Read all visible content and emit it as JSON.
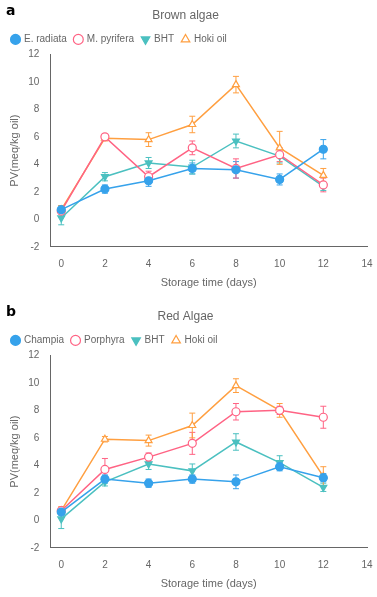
{
  "chart_data": [
    {
      "type": "line",
      "title": "Brown algae",
      "annotations": [
        "a"
      ],
      "xlabel": "Storage time (days)",
      "ylabel": "PV(meq/kg oil)",
      "x": [
        0,
        2,
        4,
        6,
        8,
        10,
        12
      ],
      "series": [
        {
          "name": "E. radiata",
          "marker": "circle",
          "values": [
            0.7,
            2.2,
            2.8,
            3.7,
            3.6,
            2.9,
            5.1
          ],
          "yerr": [
            0.3,
            0.3,
            0.4,
            0.4,
            0.6,
            0.4,
            0.7
          ]
        },
        {
          "name": "M. pyrifera",
          "marker": "circle-open",
          "values": [
            0.6,
            6.0,
            3.1,
            5.2,
            3.7,
            4.7,
            2.5
          ],
          "yerr": [
            0.1,
            0.2,
            0.4,
            0.5,
            0.7,
            0.5,
            0.5
          ]
        },
        {
          "name": "BHT",
          "marker": "triangle-down",
          "values": [
            0.1,
            3.1,
            4.1,
            3.8,
            5.7,
            4.6,
            2.4
          ],
          "yerr": [
            0.5,
            0.3,
            0.4,
            0.5,
            0.5,
            0.5,
            0.3
          ]
        },
        {
          "name": "Hoki oil",
          "marker": "triangle-open",
          "values": [
            0.7,
            5.9,
            5.8,
            6.9,
            9.8,
            5.2,
            3.2
          ],
          "yerr": [
            0.3,
            0.2,
            0.5,
            0.6,
            0.6,
            1.2,
            0.5
          ]
        }
      ],
      "xlim": [
        -0.5,
        14
      ],
      "ylim": [
        -2,
        12
      ],
      "xticks": [
        0,
        2,
        4,
        6,
        8,
        10,
        12,
        14
      ],
      "yticks": [
        -2,
        0,
        2,
        4,
        6,
        8,
        10,
        12
      ],
      "grid": false,
      "legend": "upper left"
    },
    {
      "type": "line",
      "title": "Red Algae",
      "annotations": [
        "b"
      ],
      "xlabel": "Storage time (days)",
      "ylabel": "PV(meq/kg oil)",
      "x": [
        0,
        2,
        4,
        6,
        8,
        10,
        12
      ],
      "series": [
        {
          "name": "Champia",
          "marker": "circle",
          "values": [
            0.6,
            3.0,
            2.7,
            3.0,
            2.8,
            3.9,
            3.1
          ],
          "yerr": [
            0.2,
            0.3,
            0.3,
            0.3,
            0.5,
            0.3,
            0.3
          ]
        },
        {
          "name": "Porphyra",
          "marker": "circle-open",
          "values": [
            0.7,
            3.7,
            4.6,
            5.6,
            7.9,
            8.0,
            7.5
          ],
          "yerr": [
            0.1,
            0.8,
            0.3,
            0.8,
            0.6,
            0.3,
            0.8
          ]
        },
        {
          "name": "BHT",
          "marker": "triangle-down",
          "values": [
            0.1,
            2.8,
            4.1,
            3.6,
            5.7,
            4.2,
            2.4
          ],
          "yerr": [
            0.7,
            0.3,
            0.4,
            0.5,
            0.6,
            0.5,
            0.3
          ]
        },
        {
          "name": "Hoki oil",
          "marker": "triangle-open",
          "values": [
            0.7,
            5.9,
            5.8,
            6.9,
            9.8,
            8.0,
            3.2
          ],
          "yerr": [
            0.3,
            0.2,
            0.4,
            0.9,
            0.5,
            0.5,
            0.7
          ]
        }
      ],
      "xlim": [
        -0.5,
        14
      ],
      "ylim": [
        -2,
        12
      ],
      "xticks": [
        0,
        2,
        4,
        6,
        8,
        10,
        12,
        14
      ],
      "yticks": [
        -2,
        0,
        2,
        4,
        6,
        8,
        10,
        12
      ],
      "grid": false,
      "legend": "upper left"
    }
  ]
}
